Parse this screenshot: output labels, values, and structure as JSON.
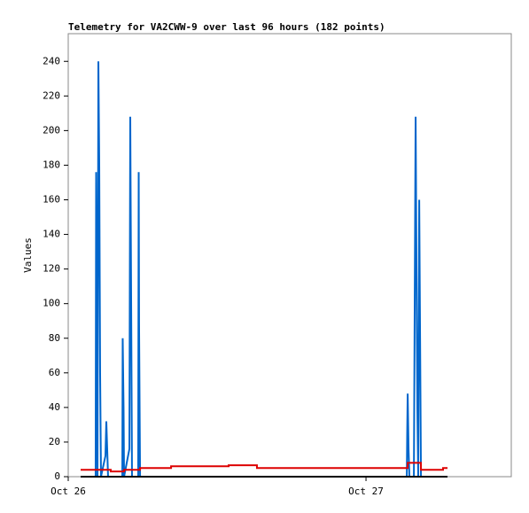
{
  "chart_data": {
    "type": "line",
    "title": "Telemetry for VA2CWW-9 over last 96 hours (182 points)",
    "ylabel": "Values",
    "xlim": [
      0,
      35.71
    ],
    "ylim": [
      0,
      256
    ],
    "xticks": [
      {
        "value": 0,
        "label": "Oct 26"
      },
      {
        "value": 24,
        "label": "Oct 27"
      }
    ],
    "yticks": [
      0,
      20,
      40,
      60,
      80,
      100,
      120,
      140,
      160,
      180,
      200,
      220,
      240
    ],
    "series": [
      {
        "color": "#0066cc",
        "step": false,
        "x": [
          1.0,
          2.21,
          2.25,
          2.29,
          2.36,
          2.43,
          2.5,
          2.57,
          2.64,
          3.0,
          3.07,
          3.14,
          3.21,
          4.36,
          4.39,
          4.46,
          4.5,
          4.93,
          5.0,
          5.07,
          5.14,
          5.64,
          5.68,
          5.71,
          5.79,
          27.29,
          27.32,
          27.36,
          27.43,
          27.5,
          27.86,
          27.93,
          28.0,
          28.07,
          28.14,
          28.21,
          28.29,
          28.36,
          28.43,
          30.57
        ],
        "values": [
          0,
          0,
          176,
          112,
          0,
          240,
          180,
          60,
          0,
          12,
          32,
          16,
          0,
          0,
          80,
          40,
          0,
          16,
          208,
          104,
          0,
          0,
          176,
          88,
          0,
          0,
          24,
          48,
          16,
          0,
          0,
          104,
          208,
          120,
          40,
          0,
          160,
          80,
          0,
          0
        ]
      },
      {
        "color": "#dd0000",
        "step": true,
        "x": [
          1.0,
          3.43,
          4.5,
          5.79,
          8.29,
          12.93,
          15.21,
          27.36,
          28.43,
          30.21,
          30.57
        ],
        "values": [
          4,
          3,
          4,
          5,
          6,
          6.6,
          5,
          8,
          4,
          5,
          5
        ]
      },
      {
        "color": "#000000",
        "step": false,
        "x": [
          1.0,
          30.57
        ],
        "values": [
          0,
          0
        ]
      }
    ]
  }
}
